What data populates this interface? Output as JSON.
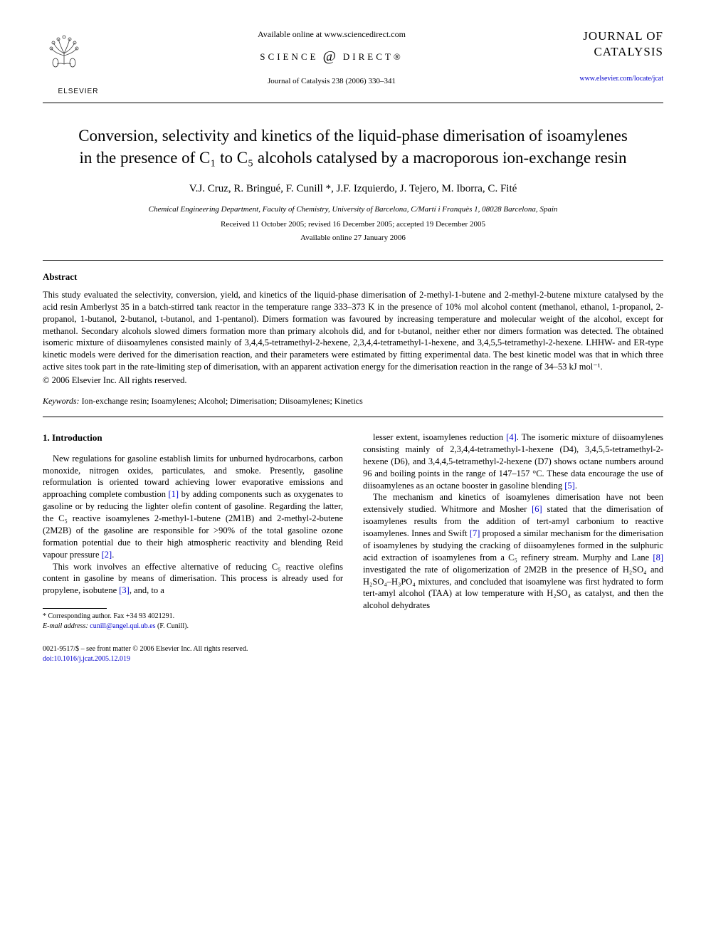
{
  "header": {
    "publisher_name": "ELSEVIER",
    "available_text": "Available online at www.sciencedirect.com",
    "science_direct_left": "SCIENCE",
    "science_direct_right": "DIRECT®",
    "journal_reference": "Journal of Catalysis 238 (2006) 330–341",
    "journal_name_line1": "JOURNAL OF",
    "journal_name_line2": "CATALYSIS",
    "journal_url": "www.elsevier.com/locate/jcat"
  },
  "title": "Conversion, selectivity and kinetics of the liquid-phase dimerisation of isoamylenes in the presence of C₁ to C₅ alcohols catalysed by a macroporous ion-exchange resin",
  "authors": "V.J. Cruz, R. Bringué, F. Cunill *, J.F. Izquierdo, J. Tejero, M. Iborra, C. Fité",
  "affiliation": "Chemical Engineering Department, Faculty of Chemistry, University of Barcelona, C/Martí i Franquès 1, 08028 Barcelona, Spain",
  "dates": "Received 11 October 2005; revised 16 December 2005; accepted 19 December 2005",
  "available_online": "Available online 27 January 2006",
  "abstract": {
    "heading": "Abstract",
    "text": "This study evaluated the selectivity, conversion, yield, and kinetics of the liquid-phase dimerisation of 2-methyl-1-butene and 2-methyl-2-butene mixture catalysed by the acid resin Amberlyst 35 in a batch-stirred tank reactor in the temperature range 333–373 K in the presence of 10% mol alcohol content (methanol, ethanol, 1-propanol, 2-propanol, 1-butanol, 2-butanol, t-butanol, and 1-pentanol). Dimers formation was favoured by increasing temperature and molecular weight of the alcohol, except for methanol. Secondary alcohols slowed dimers formation more than primary alcohols did, and for t-butanol, neither ether nor dimers formation was detected. The obtained isomeric mixture of diisoamylenes consisted mainly of 3,4,4,5-tetramethyl-2-hexene, 2,3,4,4-tetramethyl-1-hexene, and 3,4,5,5-tetramethyl-2-hexene. LHHW- and ER-type kinetic models were derived for the dimerisation reaction, and their parameters were estimated by fitting experimental data. The best kinetic model was that in which three active sites took part in the rate-limiting step of dimerisation, with an apparent activation energy for the dimerisation reaction in the range of 34–53 kJ mol⁻¹.",
    "copyright": "© 2006 Elsevier Inc. All rights reserved."
  },
  "keywords": {
    "label": "Keywords:",
    "text": "Ion-exchange resin; Isoamylenes; Alcohol; Dimerisation; Diisoamylenes; Kinetics"
  },
  "introduction": {
    "heading": "1. Introduction",
    "col1_p1": "New regulations for gasoline establish limits for unburned hydrocarbons, carbon monoxide, nitrogen oxides, particulates, and smoke. Presently, gasoline reformulation is oriented toward achieving lower evaporative emissions and approaching complete combustion [1] by adding components such as oxygenates to gasoline or by reducing the lighter olefin content of gasoline. Regarding the latter, the C₅ reactive isoamylenes 2-methyl-1-butene (2M1B) and 2-methyl-2-butene (2M2B) of the gasoline are responsible for >90% of the total gasoline ozone formation potential due to their high atmospheric reactivity and blending Reid vapour pressure [2].",
    "col1_p2": "This work involves an effective alternative of reducing C₅ reactive olefins content in gasoline by means of dimerisation. This process is already used for propylene, isobutene [3], and, to a",
    "col2_p1": "lesser extent, isoamylenes reduction [4]. The isomeric mixture of diisoamylenes consisting mainly of 2,3,4,4-tetramethyl-1-hexene (D4), 3,4,5,5-tetramethyl-2-hexene (D6), and 3,4,4,5-tetramethyl-2-hexene (D7) shows octane numbers around 96 and boiling points in the range of 147–157 °C. These data encourage the use of diisoamylenes as an octane booster in gasoline blending [5].",
    "col2_p2": "The mechanism and kinetics of isoamylenes dimerisation have not been extensively studied. Whitmore and Mosher [6] stated that the dimerisation of isoamylenes results from the addition of tert-amyl carbonium to reactive isoamylenes. Innes and Swift [7] proposed a similar mechanism for the dimerisation of isoamylenes by studying the cracking of diisoamylenes formed in the sulphuric acid extraction of isoamylenes from a C₅ refinery stream. Murphy and Lane [8] investigated the rate of oligomerization of 2M2B in the presence of H₂SO₄ and H₂SO₄–H₃PO₄ mixtures, and concluded that isoamylene was first hydrated to form tert-amyl alcohol (TAA) at low temperature with H₂SO₄ as catalyst, and then the alcohol dehydrates"
  },
  "footnote": {
    "corresponding": "* Corresponding author. Fax +34 93 4021291.",
    "email_label": "E-mail address:",
    "email": "cunill@angel.qui.ub.es",
    "email_suffix": "(F. Cunill)."
  },
  "footer": {
    "issn_line": "0021-9517/$ – see front matter © 2006 Elsevier Inc. All rights reserved.",
    "doi": "doi:10.1016/j.jcat.2005.12.019"
  },
  "colors": {
    "link": "#0000cc",
    "text": "#000000",
    "background": "#ffffff"
  }
}
